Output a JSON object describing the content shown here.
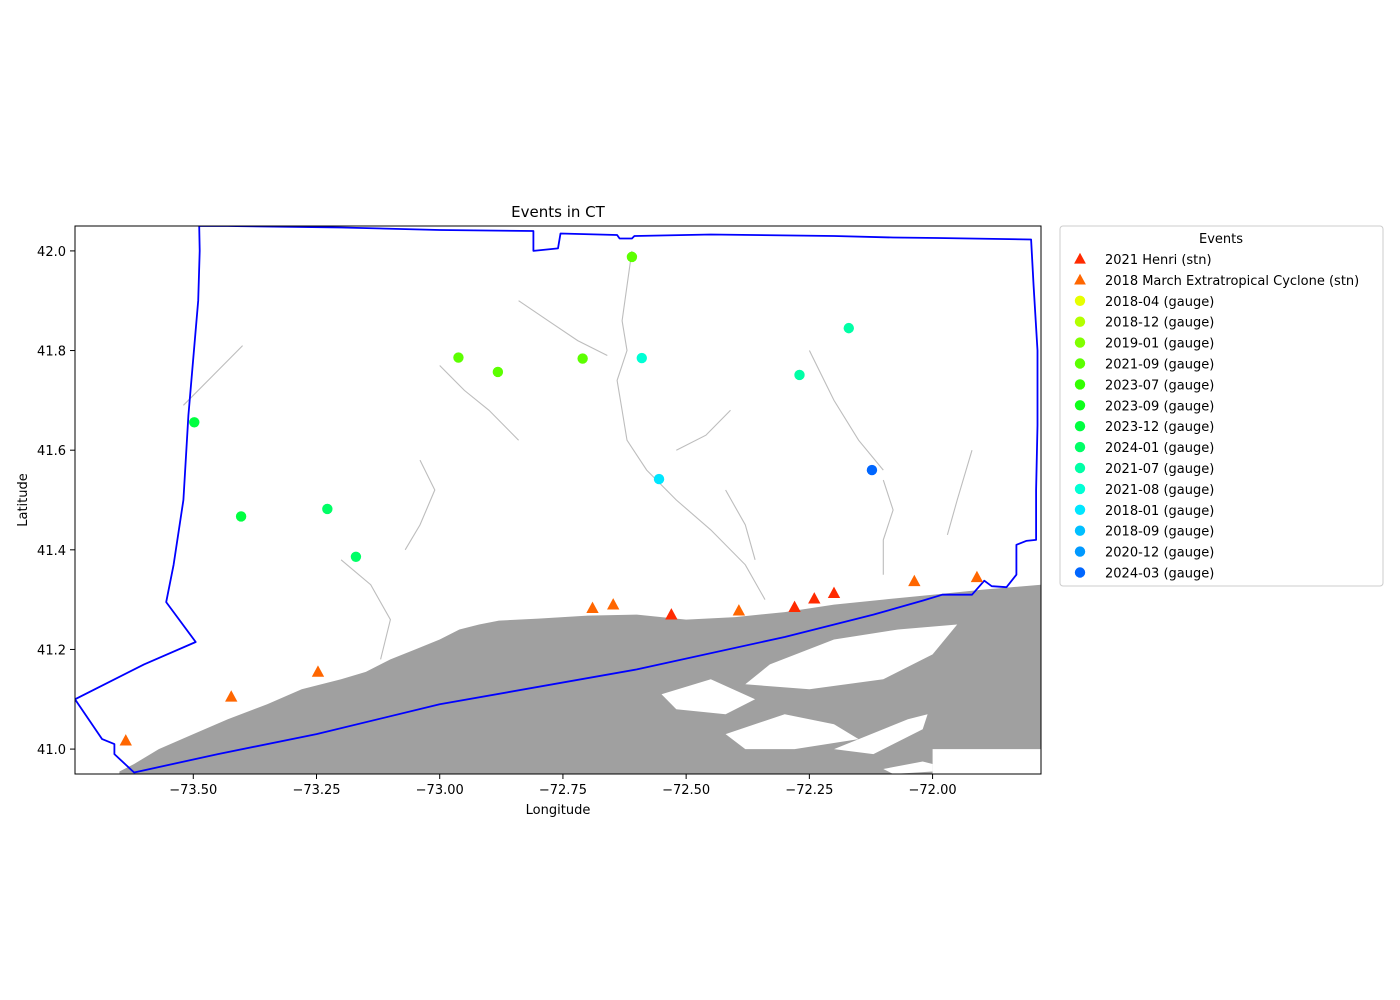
{
  "chart_data": {
    "type": "scatter",
    "title": "Events in CT",
    "xlabel": "Longitude",
    "ylabel": "Latitude",
    "xlim": [
      -73.74,
      -71.78
    ],
    "ylim": [
      40.95,
      42.05
    ],
    "xticks": [
      -73.5,
      -73.25,
      -73.0,
      -72.75,
      -72.5,
      -72.25,
      -72.0
    ],
    "xtick_labels": [
      "−73.50",
      "−73.25",
      "−73.00",
      "−72.75",
      "−72.50",
      "−72.25",
      "−72.00"
    ],
    "yticks": [
      41.0,
      41.2,
      41.4,
      41.6,
      41.8,
      42.0
    ],
    "ytick_labels": [
      "41.0",
      "41.2",
      "41.4",
      "41.6",
      "41.8",
      "42.0"
    ],
    "grid": false,
    "legend": {
      "title": "Events",
      "placement": "right, outside plot"
    },
    "series": [
      {
        "name": "2021 Henri (stn)",
        "marker": "triangle",
        "color": "#ff2a00",
        "points": [
          [
            -72.53,
            41.27
          ],
          [
            -72.28,
            41.285
          ],
          [
            -72.24,
            41.302
          ],
          [
            -72.2,
            41.313
          ]
        ]
      },
      {
        "name": "2018 March Extratropical Cyclone (stn)",
        "marker": "triangle",
        "color": "#ff6600",
        "points": [
          [
            -73.637,
            41.017
          ],
          [
            -73.423,
            41.105
          ],
          [
            -73.247,
            41.155
          ],
          [
            -72.69,
            41.283
          ],
          [
            -72.648,
            41.29
          ],
          [
            -72.393,
            41.278
          ],
          [
            -72.037,
            41.337
          ],
          [
            -71.91,
            41.345
          ]
        ]
      },
      {
        "name": "2018-04 (gauge)",
        "marker": "circle",
        "color": "#e6ff00",
        "points": []
      },
      {
        "name": "2018-12 (gauge)",
        "marker": "circle",
        "color": "#b3ff00",
        "points": []
      },
      {
        "name": "2019-01 (gauge)",
        "marker": "circle",
        "color": "#80ff00",
        "points": []
      },
      {
        "name": "2021-09 (gauge)",
        "marker": "circle",
        "color": "#5cff00",
        "points": [
          [
            -72.61,
            41.988
          ],
          [
            -72.962,
            41.786
          ],
          [
            -72.882,
            41.757
          ],
          [
            -72.71,
            41.784
          ]
        ]
      },
      {
        "name": "2023-07 (gauge)",
        "marker": "circle",
        "color": "#33ff00",
        "points": []
      },
      {
        "name": "2023-09 (gauge)",
        "marker": "circle",
        "color": "#0dff1a",
        "points": []
      },
      {
        "name": "2023-12 (gauge)",
        "marker": "circle",
        "color": "#00ff40",
        "points": [
          [
            -73.498,
            41.656
          ],
          [
            -73.403,
            41.467
          ]
        ]
      },
      {
        "name": "2024-01 (gauge)",
        "marker": "circle",
        "color": "#00ff66",
        "points": [
          [
            -73.228,
            41.482
          ],
          [
            -73.17,
            41.386
          ]
        ]
      },
      {
        "name": "2021-07 (gauge)",
        "marker": "circle",
        "color": "#00ffa6",
        "points": [
          [
            -72.27,
            41.751
          ],
          [
            -72.17,
            41.845
          ]
        ]
      },
      {
        "name": "2021-08 (gauge)",
        "marker": "circle",
        "color": "#00ffd5",
        "points": [
          [
            -72.59,
            41.785
          ]
        ]
      },
      {
        "name": "2018-01 (gauge)",
        "marker": "circle",
        "color": "#00e6ff",
        "points": [
          [
            -72.555,
            41.542
          ]
        ]
      },
      {
        "name": "2018-09 (gauge)",
        "marker": "circle",
        "color": "#00bfff",
        "points": []
      },
      {
        "name": "2020-12 (gauge)",
        "marker": "circle",
        "color": "#0099ff",
        "points": []
      },
      {
        "name": "2024-03 (gauge)",
        "marker": "circle",
        "color": "#0066ff",
        "points": [
          [
            -72.123,
            41.56
          ]
        ]
      }
    ]
  },
  "map": {
    "water_color": "#a0a0a0",
    "river_color": "#bdbdbd",
    "boundary_color": "#0000ff",
    "state_boundary": [
      [
        -73.488,
        42.05
      ],
      [
        -73.43,
        42.05
      ],
      [
        -73.2,
        42.047
      ],
      [
        -73.0,
        42.042
      ],
      [
        -72.81,
        42.04
      ],
      [
        -72.81,
        42.0
      ],
      [
        -72.76,
        42.005
      ],
      [
        -72.755,
        42.035
      ],
      [
        -72.64,
        42.032
      ],
      [
        -72.635,
        42.025
      ],
      [
        -72.61,
        42.025
      ],
      [
        -72.605,
        42.03
      ],
      [
        -72.45,
        42.033
      ],
      [
        -72.2,
        42.03
      ],
      [
        -72.08,
        42.027
      ],
      [
        -71.99,
        42.026
      ],
      [
        -71.8,
        42.023
      ],
      [
        -71.795,
        41.93
      ],
      [
        -71.787,
        41.8
      ],
      [
        -71.787,
        41.65
      ],
      [
        -71.79,
        41.52
      ],
      [
        -71.79,
        41.42
      ],
      [
        -71.81,
        41.418
      ],
      [
        -71.83,
        41.41
      ],
      [
        -71.83,
        41.39
      ],
      [
        -71.83,
        41.35
      ],
      [
        -71.85,
        41.325
      ],
      [
        -71.88,
        41.327
      ],
      [
        -71.895,
        41.338
      ],
      [
        -71.92,
        41.31
      ],
      [
        -71.98,
        41.31
      ],
      [
        -72.02,
        41.298
      ],
      [
        -72.12,
        41.27
      ],
      [
        -72.3,
        41.225
      ],
      [
        -72.6,
        41.16
      ],
      [
        -73.0,
        41.09
      ],
      [
        -73.25,
        41.03
      ],
      [
        -73.45,
        40.99
      ],
      [
        -73.62,
        40.953
      ],
      [
        -73.66,
        40.99
      ],
      [
        -73.66,
        41.01
      ],
      [
        -73.685,
        41.02
      ],
      [
        -73.74,
        41.1
      ],
      [
        -73.6,
        41.17
      ],
      [
        -73.495,
        41.215
      ],
      [
        -73.555,
        41.295
      ],
      [
        -73.54,
        41.37
      ],
      [
        -73.52,
        41.5
      ],
      [
        -73.51,
        41.67
      ],
      [
        -73.49,
        41.9
      ],
      [
        -73.487,
        42.0
      ],
      [
        -73.488,
        42.05
      ]
    ],
    "water": [
      [
        [
          -73.65,
          40.955
        ],
        [
          -73.62,
          40.97
        ],
        [
          -73.57,
          41.0
        ],
        [
          -73.5,
          41.03
        ],
        [
          -73.43,
          41.06
        ],
        [
          -73.35,
          41.09
        ],
        [
          -73.28,
          41.12
        ],
        [
          -73.2,
          41.14
        ],
        [
          -73.15,
          41.155
        ],
        [
          -73.1,
          41.18
        ],
        [
          -73.05,
          41.2
        ],
        [
          -73.0,
          41.22
        ],
        [
          -72.96,
          41.24
        ],
        [
          -72.92,
          41.25
        ],
        [
          -72.88,
          41.258
        ],
        [
          -72.8,
          41.262
        ],
        [
          -72.7,
          41.268
        ],
        [
          -72.6,
          41.27
        ],
        [
          -72.5,
          41.26
        ],
        [
          -72.4,
          41.265
        ],
        [
          -72.3,
          41.275
        ],
        [
          -72.2,
          41.29
        ],
        [
          -72.1,
          41.3
        ],
        [
          -72.0,
          41.31
        ],
        [
          -71.9,
          41.32
        ],
        [
          -71.78,
          41.33
        ],
        [
          -71.78,
          41.0
        ],
        [
          -72.0,
          41.0
        ],
        [
          -72.0,
          40.95
        ],
        [
          -73.65,
          40.95
        ]
      ]
    ],
    "land": [
      [
        [
          -72.33,
          41.17
        ],
        [
          -72.2,
          41.22
        ],
        [
          -72.07,
          41.24
        ],
        [
          -71.95,
          41.25
        ],
        [
          -72.0,
          41.19
        ],
        [
          -72.1,
          41.14
        ],
        [
          -72.25,
          41.12
        ],
        [
          -72.38,
          41.13
        ]
      ],
      [
        [
          -72.55,
          41.11
        ],
        [
          -72.45,
          41.14
        ],
        [
          -72.36,
          41.1
        ],
        [
          -72.42,
          41.07
        ],
        [
          -72.52,
          41.08
        ]
      ],
      [
        [
          -72.42,
          41.03
        ],
        [
          -72.3,
          41.07
        ],
        [
          -72.2,
          41.05
        ],
        [
          -72.15,
          41.02
        ],
        [
          -72.28,
          41.0
        ],
        [
          -72.38,
          41.0
        ]
      ],
      [
        [
          -72.2,
          41.0
        ],
        [
          -72.05,
          41.06
        ],
        [
          -72.01,
          41.07
        ],
        [
          -72.02,
          41.04
        ],
        [
          -72.12,
          40.99
        ]
      ],
      [
        [
          -72.1,
          40.96
        ],
        [
          -72.02,
          40.975
        ],
        [
          -72.0,
          40.97
        ],
        [
          -72.0,
          40.955
        ],
        [
          -72.08,
          40.95
        ]
      ]
    ],
    "rivers": [
      [
        [
          -72.61,
          42.0
        ],
        [
          -72.62,
          41.93
        ],
        [
          -72.63,
          41.86
        ],
        [
          -72.62,
          41.8
        ],
        [
          -72.64,
          41.74
        ],
        [
          -72.63,
          41.68
        ],
        [
          -72.62,
          41.62
        ],
        [
          -72.58,
          41.56
        ],
        [
          -72.52,
          41.5
        ],
        [
          -72.45,
          41.44
        ],
        [
          -72.38,
          41.37
        ],
        [
          -72.34,
          41.3
        ]
      ],
      [
        [
          -73.2,
          41.38
        ],
        [
          -73.14,
          41.33
        ],
        [
          -73.1,
          41.26
        ],
        [
          -73.12,
          41.18
        ]
      ],
      [
        [
          -72.1,
          41.54
        ],
        [
          -72.08,
          41.48
        ],
        [
          -72.1,
          41.42
        ],
        [
          -72.1,
          41.35
        ]
      ],
      [
        [
          -72.25,
          41.8
        ],
        [
          -72.2,
          41.7
        ],
        [
          -72.15,
          41.62
        ],
        [
          -72.1,
          41.56
        ]
      ],
      [
        [
          -73.52,
          41.69
        ],
        [
          -73.46,
          41.75
        ],
        [
          -73.4,
          41.81
        ]
      ],
      [
        [
          -73.0,
          41.77
        ],
        [
          -72.95,
          41.72
        ],
        [
          -72.9,
          41.68
        ],
        [
          -72.84,
          41.62
        ]
      ],
      [
        [
          -72.84,
          41.9
        ],
        [
          -72.78,
          41.86
        ],
        [
          -72.72,
          41.82
        ],
        [
          -72.66,
          41.79
        ]
      ],
      [
        [
          -72.52,
          41.6
        ],
        [
          -72.46,
          41.63
        ],
        [
          -72.41,
          41.68
        ]
      ],
      [
        [
          -73.04,
          41.58
        ],
        [
          -73.01,
          41.52
        ],
        [
          -73.04,
          41.45
        ],
        [
          -73.07,
          41.4
        ]
      ],
      [
        [
          -72.42,
          41.52
        ],
        [
          -72.38,
          41.45
        ],
        [
          -72.36,
          41.38
        ]
      ],
      [
        [
          -71.92,
          41.6
        ],
        [
          -71.95,
          41.5
        ],
        [
          -71.97,
          41.43
        ]
      ]
    ]
  }
}
